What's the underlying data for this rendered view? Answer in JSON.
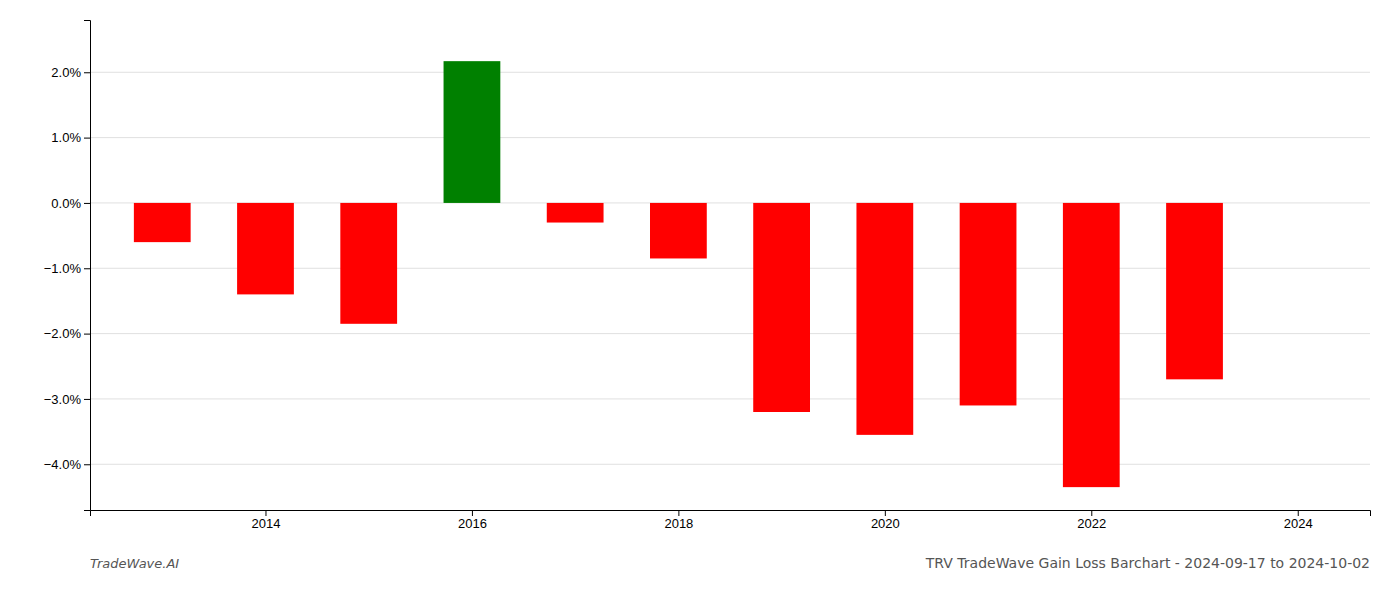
{
  "chart_data": {
    "type": "bar",
    "title": "TRV TradeWave Gain Loss Barchart - 2024-09-17 to 2024-10-02",
    "annotations": [
      "TradeWave.AI"
    ],
    "x": [
      2013,
      2014,
      2015,
      2016,
      2017,
      2018,
      2019,
      2020,
      2021,
      2022,
      2023
    ],
    "values": [
      -0.006,
      -0.014,
      -0.0185,
      0.0217,
      -0.003,
      -0.0085,
      -0.032,
      -0.0355,
      -0.031,
      -0.0435,
      -0.027
    ],
    "colors": [
      "red",
      "red",
      "red",
      "green",
      "red",
      "red",
      "red",
      "red",
      "red",
      "red",
      "red"
    ],
    "xlim": [
      2012.3,
      2024.7
    ],
    "xticks": [
      2014,
      2016,
      2018,
      2020,
      2022,
      2024
    ],
    "ylim": [
      -0.047,
      0.028
    ],
    "yticks": [
      {
        "value": -0.04,
        "label": "−4.0%"
      },
      {
        "value": -0.03,
        "label": "−3.0%"
      },
      {
        "value": -0.02,
        "label": "−2.0%"
      },
      {
        "value": -0.01,
        "label": "−1.0%"
      },
      {
        "value": 0.0,
        "label": "0.0%"
      },
      {
        "value": 0.01,
        "label": "1.0%"
      },
      {
        "value": 0.02,
        "label": "2.0%"
      }
    ],
    "grid": true
  }
}
